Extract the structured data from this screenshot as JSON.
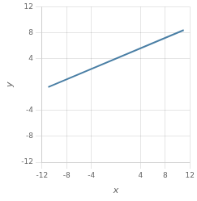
{
  "chart_data": {
    "type": "line",
    "x": [
      -11,
      11
    ],
    "values": [
      -0.4,
      8.4
    ],
    "color": "#4a7fa5",
    "xlabel": "x",
    "ylabel": "y",
    "xlim": [
      -12,
      12
    ],
    "ylim": [
      -12,
      12
    ],
    "xticks": [
      -12,
      -8,
      -4,
      4,
      8,
      12
    ],
    "yticks": [
      -12,
      -8,
      -4,
      4,
      8,
      12
    ],
    "grid": true
  }
}
